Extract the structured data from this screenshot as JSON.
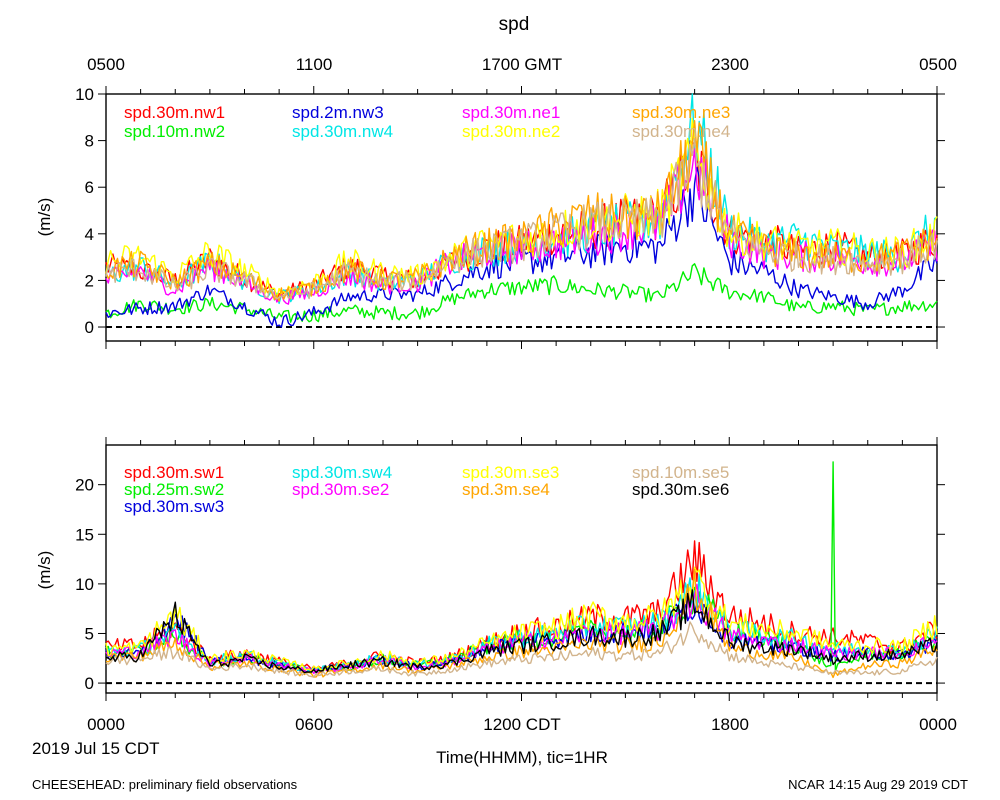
{
  "title": "spd",
  "top_axis_labels": [
    "0500",
    "1100",
    "1700 GMT",
    "2300",
    "0500"
  ],
  "bottom_axis_labels": [
    "0000",
    "0600",
    "1200 CDT",
    "1800",
    "0000"
  ],
  "date_label": "2019 Jul 15 CDT",
  "xlabel": "Time(HHMM), tic=1HR",
  "footer_left": "CHEESEHEAD: preliminary field observations",
  "footer_right": "NCAR 14:15 Aug 29 2019 CDT",
  "chart_data": [
    {
      "type": "line",
      "name": "upper-panel",
      "ylabel": "(m/s)",
      "ylim": [
        -0.6,
        10
      ],
      "yticks": [
        0,
        2,
        4,
        6,
        8,
        10
      ],
      "xlim_hours": [
        0,
        24
      ],
      "zero_line": true,
      "x_hours": [
        0,
        1,
        2,
        3,
        4,
        5,
        6,
        7,
        8,
        9,
        10,
        11,
        12,
        13,
        14,
        15,
        16,
        17,
        18,
        19,
        20,
        21,
        22,
        23,
        24
      ],
      "series": [
        {
          "name": "spd.30m.nw1",
          "color": "#ff0000",
          "values": [
            2.6,
            2.4,
            2.0,
            2.9,
            2.1,
            1.4,
            1.8,
            2.6,
            2.2,
            2.0,
            2.8,
            3.4,
            3.6,
            4.0,
            4.2,
            4.6,
            4.8,
            7.2,
            4.0,
            3.8,
            3.2,
            3.5,
            3.0,
            3.1,
            3.8
          ]
        },
        {
          "name": "spd.10m.nw2",
          "color": "#00ee00",
          "values": [
            0.6,
            1.0,
            0.8,
            1.0,
            0.8,
            0.4,
            0.5,
            0.7,
            0.6,
            0.6,
            1.2,
            1.6,
            1.7,
            1.8,
            1.6,
            1.5,
            1.3,
            2.3,
            1.5,
            1.3,
            0.8,
            0.9,
            0.7,
            0.9,
            1.0
          ]
        },
        {
          "name": "spd.2m.nw3",
          "color": "#0000dd",
          "values": [
            0.6,
            0.8,
            0.9,
            1.6,
            0.9,
            0.2,
            0.6,
            1.3,
            1.4,
            1.4,
            2.0,
            2.6,
            2.8,
            3.0,
            3.2,
            3.5,
            3.4,
            6.0,
            2.8,
            2.4,
            1.6,
            1.3,
            1.0,
            1.6,
            2.8
          ]
        },
        {
          "name": "spd.30m.nw4",
          "color": "#00e6e6",
          "values": [
            2.2,
            2.6,
            1.8,
            2.8,
            2.0,
            1.3,
            1.6,
            2.3,
            1.9,
            2.0,
            2.9,
            3.3,
            3.5,
            3.7,
            4.1,
            4.4,
            4.6,
            8.8,
            4.2,
            3.6,
            3.8,
            3.3,
            3.2,
            3.0,
            4.4
          ]
        },
        {
          "name": "spd.30m.ne1",
          "color": "#ff00ff",
          "values": [
            2.0,
            2.4,
            1.6,
            2.6,
            1.9,
            1.2,
            1.5,
            2.2,
            1.8,
            1.9,
            2.8,
            3.2,
            3.4,
            3.6,
            3.9,
            4.2,
            4.4,
            7.0,
            3.8,
            3.2,
            3.0,
            3.0,
            2.8,
            2.8,
            3.6
          ]
        },
        {
          "name": "spd.30m.ne2",
          "color": "#ffff00",
          "values": [
            2.8,
            3.0,
            2.2,
            3.2,
            2.4,
            1.5,
            1.9,
            2.8,
            2.3,
            2.2,
            3.0,
            3.6,
            3.8,
            4.1,
            4.6,
            4.7,
            4.9,
            7.5,
            4.1,
            3.7,
            3.4,
            3.5,
            3.2,
            3.2,
            4.0
          ]
        },
        {
          "name": "spd.30m.ne3",
          "color": "#ffa500",
          "values": [
            2.5,
            2.7,
            1.9,
            2.7,
            2.1,
            1.4,
            1.7,
            2.5,
            2.0,
            2.1,
            3.0,
            3.5,
            3.7,
            4.3,
            4.8,
            4.6,
            4.8,
            7.8,
            4.0,
            3.4,
            3.1,
            3.0,
            2.9,
            3.1,
            3.8
          ]
        },
        {
          "name": "spd.30m.ne4",
          "color": "#d2b48c",
          "values": [
            2.3,
            2.5,
            1.7,
            2.5,
            2.0,
            1.3,
            1.6,
            2.4,
            1.9,
            2.0,
            2.9,
            3.3,
            3.6,
            4.0,
            4.4,
            4.5,
            4.6,
            7.1,
            3.9,
            3.3,
            3.0,
            2.9,
            2.8,
            2.9,
            3.6
          ]
        }
      ]
    },
    {
      "type": "line",
      "name": "lower-panel",
      "ylabel": "(m/s)",
      "ylim": [
        -1,
        24
      ],
      "yticks": [
        0,
        5,
        10,
        15,
        20
      ],
      "xlim_hours": [
        0,
        24
      ],
      "zero_line": true,
      "x_hours": [
        0,
        1,
        2,
        3,
        4,
        5,
        6,
        7,
        8,
        9,
        10,
        11,
        12,
        13,
        14,
        15,
        16,
        17,
        18,
        19,
        20,
        21,
        22,
        23,
        24
      ],
      "series": [
        {
          "name": "spd.30m.sw1",
          "color": "#ff0000",
          "values": [
            3.6,
            3.8,
            5.6,
            2.4,
            3.0,
            2.2,
            1.4,
            2.0,
            2.8,
            2.0,
            2.6,
            4.0,
            5.2,
            5.6,
            6.6,
            6.5,
            7.0,
            12.5,
            6.8,
            6.0,
            5.0,
            4.6,
            4.2,
            3.6,
            5.6
          ]
        },
        {
          "name": "spd.25m.sw2",
          "color": "#00ee00",
          "values": [
            3.0,
            3.2,
            4.8,
            2.0,
            2.6,
            1.9,
            1.2,
            1.6,
            2.4,
            1.8,
            2.4,
            3.6,
            4.4,
            4.6,
            5.2,
            5.0,
            5.4,
            9.0,
            5.2,
            4.4,
            3.8,
            1.4,
            3.0,
            2.8,
            4.6
          ]
        },
        {
          "name": "spd.30m.sw3",
          "color": "#0000dd",
          "values": [
            2.8,
            3.0,
            6.8,
            2.0,
            2.5,
            1.8,
            1.3,
            1.8,
            2.4,
            1.6,
            2.2,
            3.6,
            4.2,
            4.6,
            5.0,
            5.2,
            5.4,
            8.2,
            4.6,
            3.8,
            3.6,
            2.8,
            3.0,
            2.8,
            4.2
          ]
        },
        {
          "name": "spd.30m.sw4",
          "color": "#00e6e6",
          "values": [
            3.2,
            3.4,
            5.0,
            2.2,
            2.8,
            2.0,
            1.3,
            1.8,
            2.6,
            1.8,
            2.4,
            3.8,
            4.6,
            5.0,
            5.8,
            5.6,
            6.0,
            9.6,
            5.4,
            4.8,
            4.4,
            3.4,
            3.4,
            3.2,
            5.0
          ]
        },
        {
          "name": "spd.30m.se2",
          "color": "#ff00ff",
          "values": [
            3.0,
            3.2,
            4.8,
            2.0,
            2.6,
            1.8,
            1.2,
            1.6,
            2.4,
            1.6,
            2.2,
            3.4,
            4.2,
            4.4,
            5.2,
            5.0,
            5.4,
            8.6,
            4.8,
            4.2,
            3.8,
            3.0,
            3.0,
            3.0,
            4.4
          ]
        },
        {
          "name": "spd.30m.se3",
          "color": "#ffff00",
          "values": [
            3.4,
            3.6,
            7.0,
            2.4,
            3.0,
            2.2,
            1.4,
            2.0,
            2.8,
            2.0,
            2.6,
            4.0,
            5.0,
            5.6,
            6.8,
            6.2,
            6.6,
            10.5,
            6.0,
            5.4,
            5.0,
            3.8,
            3.8,
            3.6,
            6.0
          ]
        },
        {
          "name": "spd.3m.se4",
          "color": "#ffa500",
          "values": [
            2.6,
            2.8,
            4.0,
            1.6,
            2.0,
            1.4,
            0.8,
            1.2,
            1.8,
            1.2,
            1.8,
            2.6,
            3.2,
            3.4,
            4.0,
            3.8,
            4.2,
            9.4,
            3.6,
            3.0,
            2.4,
            0.8,
            1.8,
            2.0,
            3.6
          ]
        },
        {
          "name": "spd.10m.se5",
          "color": "#d2b48c",
          "values": [
            2.2,
            2.4,
            3.2,
            1.4,
            1.8,
            1.2,
            0.8,
            1.2,
            1.4,
            0.9,
            1.4,
            2.0,
            2.4,
            2.6,
            3.0,
            2.8,
            3.0,
            5.6,
            2.8,
            2.0,
            1.6,
            1.0,
            1.0,
            1.2,
            2.4
          ]
        },
        {
          "name": "spd.30m.se6",
          "color": "#000000",
          "values": [
            2.4,
            2.8,
            6.8,
            1.8,
            2.4,
            1.6,
            1.2,
            1.8,
            2.2,
            1.6,
            2.0,
            3.2,
            3.8,
            4.2,
            4.8,
            4.6,
            5.0,
            8.0,
            4.2,
            3.6,
            3.4,
            2.4,
            2.8,
            2.8,
            4.0
          ]
        }
      ]
    }
  ]
}
